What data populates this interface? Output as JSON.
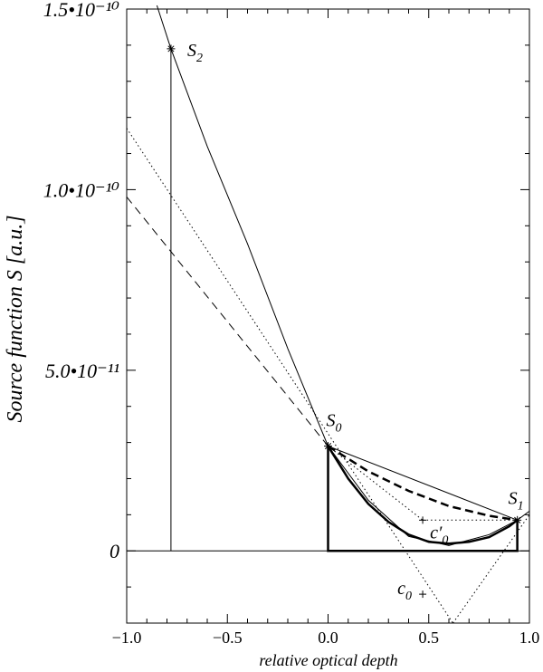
{
  "chart_data": {
    "type": "line",
    "title": "",
    "xlabel": "relative optical depth",
    "ylabel": "Source function S [a.u.]",
    "xlim": [
      -1.0,
      1.0
    ],
    "ylim": [
      -2e-11,
      1.5e-10
    ],
    "x_ticks": [
      {
        "value": -1.0,
        "label": "−1.0"
      },
      {
        "value": -0.5,
        "label": "−0.5"
      },
      {
        "value": 0.0,
        "label": "0.0"
      },
      {
        "value": 0.5,
        "label": "0.5"
      },
      {
        "value": 1.0,
        "label": "1.0"
      }
    ],
    "y_ticks": [
      {
        "value": 0,
        "label": "0"
      },
      {
        "value": 5e-11,
        "label": "5.0•10⁻¹¹"
      },
      {
        "value": 1e-10,
        "label": "1.0•10⁻¹⁰"
      },
      {
        "value": 1.5e-10,
        "label": "1.5•10⁻¹⁰"
      }
    ],
    "points": [
      {
        "id": "S2",
        "label": "S",
        "sub": "2",
        "x": -0.78,
        "y": 1.39e-10
      },
      {
        "id": "S0",
        "label": "S",
        "sub": "0",
        "x": 0.0,
        "y": 2.9e-11
      },
      {
        "id": "S1",
        "label": "S",
        "sub": "1",
        "x": 0.94,
        "y": 8.5e-12
      },
      {
        "id": "c0p",
        "label": "c′",
        "sub": "0",
        "x": 0.47,
        "y": 8.5e-12
      },
      {
        "id": "c0",
        "label": "c",
        "sub": "0",
        "x": 0.47,
        "y": -1.2e-11
      }
    ],
    "series": [
      {
        "id": "parabola-thin",
        "style": "solid-thin",
        "x": [
          -0.85,
          -0.78,
          -0.6,
          -0.4,
          -0.2,
          0.0,
          0.2,
          0.4,
          0.6,
          0.8,
          0.94,
          1.0
        ],
        "y": [
          1.51e-10,
          1.39e-10,
          1.12e-10,
          8.5e-11,
          5.6e-11,
          2.9e-11,
          1.4e-11,
          4e-12,
          1.5e-12,
          4.5e-12,
          8.5e-12,
          1.1e-11
        ]
      },
      {
        "id": "chord-S0-S1",
        "style": "solid-thin",
        "x": [
          0.0,
          0.94
        ],
        "y": [
          2.9e-11,
          8.5e-12
        ]
      },
      {
        "id": "parabola-thick",
        "style": "solid-thick",
        "x": [
          0.0,
          0.1,
          0.2,
          0.3,
          0.4,
          0.5,
          0.6,
          0.7,
          0.8,
          0.9,
          0.94
        ],
        "y": [
          2.9e-11,
          2e-11,
          1.3e-11,
          8e-12,
          4.5e-12,
          2.5e-12,
          2e-12,
          2.5e-12,
          3.8e-12,
          6.8e-12,
          8.5e-12
        ]
      },
      {
        "id": "bezier-dashed-thick",
        "style": "dashed-thick",
        "x": [
          0.0,
          0.2,
          0.4,
          0.6,
          0.8,
          0.94
        ],
        "y": [
          2.9e-11,
          2.2e-11,
          1.66e-11,
          1.24e-11,
          9.7e-12,
          8.5e-12
        ]
      },
      {
        "id": "tangent-dashed",
        "style": "dashed-thin",
        "x": [
          -1.0,
          0.0
        ],
        "y": [
          9.8e-11,
          2.9e-11
        ]
      },
      {
        "id": "tangent-dotted-S0",
        "style": "dotted",
        "x": [
          -1.0,
          0.62
        ],
        "y": [
          1.17e-10,
          -2e-11
        ]
      },
      {
        "id": "tangent-dotted-S1",
        "style": "dotted",
        "x": [
          0.62,
          1.0
        ],
        "y": [
          -2e-11,
          1e-11
        ]
      },
      {
        "id": "dotted-S0-c0p",
        "style": "dotted",
        "x": [
          0.0,
          0.47
        ],
        "y": [
          2.9e-11,
          8.5e-12
        ]
      },
      {
        "id": "dotted-c0p-S1",
        "style": "dotted",
        "x": [
          0.47,
          0.94
        ],
        "y": [
          8.5e-12,
          8.5e-12
        ]
      },
      {
        "id": "vertical-S2",
        "style": "solid-thin",
        "x": [
          -0.78,
          -0.78
        ],
        "y": [
          0,
          1.39e-10
        ]
      },
      {
        "id": "zero-line",
        "style": "solid-thin",
        "x": [
          -1.0,
          1.0
        ],
        "y": [
          0,
          0
        ]
      },
      {
        "id": "box-interval",
        "style": "solid-thick",
        "x": [
          0.0,
          0.0,
          0.94,
          0.94
        ],
        "y": [
          2.9e-11,
          0,
          0,
          8.5e-12
        ]
      }
    ],
    "grid": false,
    "legend": "none"
  }
}
